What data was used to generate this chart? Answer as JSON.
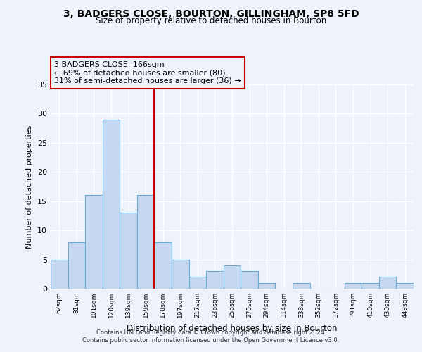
{
  "title": "3, BADGERS CLOSE, BOURTON, GILLINGHAM, SP8 5FD",
  "subtitle": "Size of property relative to detached houses in Bourton",
  "xlabel": "Distribution of detached houses by size in Bourton",
  "ylabel": "Number of detached properties",
  "bins": [
    "62sqm",
    "81sqm",
    "101sqm",
    "120sqm",
    "139sqm",
    "159sqm",
    "178sqm",
    "197sqm",
    "217sqm",
    "236sqm",
    "256sqm",
    "275sqm",
    "294sqm",
    "314sqm",
    "333sqm",
    "352sqm",
    "372sqm",
    "391sqm",
    "410sqm",
    "430sqm",
    "449sqm"
  ],
  "values": [
    5,
    8,
    16,
    29,
    13,
    16,
    8,
    5,
    2,
    3,
    4,
    3,
    1,
    0,
    1,
    0,
    0,
    1,
    1,
    2,
    1
  ],
  "bar_color": "#c5d8f0",
  "bar_edge_color": "#6aaad4",
  "vline_x": 5.5,
  "vline_color": "#cc0000",
  "annotation_line1": "3 BADGERS CLOSE: 166sqm",
  "annotation_line2": "← 69% of detached houses are smaller (80)",
  "annotation_line3": "31% of semi-detached houses are larger (36) →",
  "annotation_box_color": "#cc0000",
  "ylim": [
    0,
    35
  ],
  "yticks": [
    0,
    5,
    10,
    15,
    20,
    25,
    30,
    35
  ],
  "footer_line1": "Contains HM Land Registry data © Crown copyright and database right 2024.",
  "footer_line2": "Contains public sector information licensed under the Open Government Licence v3.0.",
  "bg_color": "#eef2fb"
}
